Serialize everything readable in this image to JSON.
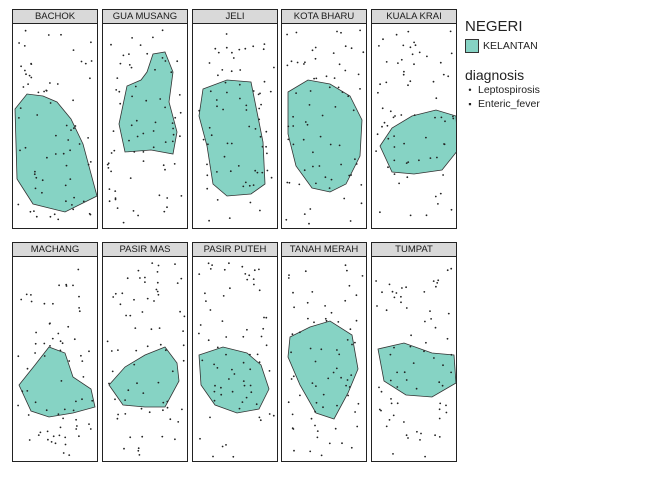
{
  "panels": [
    "BACHOK",
    "GUA MUSANG",
    "JELI",
    "KOTA BHARU",
    "KUALA KRAI",
    "MACHANG",
    "PASIR MAS",
    "PASIR PUTEH",
    "TANAH MERAH",
    "TUMPAT"
  ],
  "legend": {
    "fill_title": "NEGERI",
    "fill_item": "KELANTAN",
    "fill_color": "#86d3c4",
    "point_title": "diagnosis",
    "points": [
      {
        "label": "Leptospirosis",
        "symbol": "•"
      },
      {
        "label": "Enteric_fever",
        "symbol": "▪"
      }
    ]
  },
  "colors": {
    "polygon": "#86d3c4",
    "outline": "#333333",
    "points": "#222222"
  }
}
